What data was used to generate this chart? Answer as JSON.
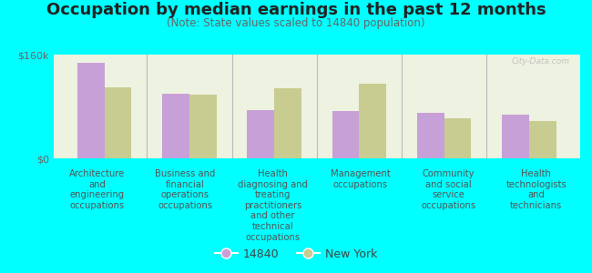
{
  "title": "Occupation by median earnings in the past 12 months",
  "subtitle": "(Note: State values scaled to 14840 population)",
  "categories": [
    "Architecture\nand\nengineering\noccupations",
    "Business and\nfinancial\noperations\noccupations",
    "Health\ndiagnosing and\ntreating\npractitioners\nand other\ntechnical\noccupations",
    "Management\noccupations",
    "Community\nand social\nservice\noccupations",
    "Health\ntechnologists\nand\ntechnicians"
  ],
  "values_14840": [
    148000,
    100000,
    75000,
    73000,
    70000,
    68000
  ],
  "values_ny": [
    110000,
    98000,
    108000,
    115000,
    62000,
    58000
  ],
  "color_14840": "#c8a0d8",
  "color_ny": "#c8cc90",
  "ylim": [
    0,
    160000
  ],
  "yticks": [
    0,
    160000
  ],
  "ytick_labels": [
    "$0",
    "$160k"
  ],
  "background_color": "#00ffff",
  "plot_bg_color": "#eef2e0",
  "legend_14840": "14840",
  "legend_ny": "New York",
  "watermark": "City-Data.com",
  "bar_width": 0.32,
  "title_fontsize": 13,
  "subtitle_fontsize": 8.5,
  "label_fontsize": 7.2,
  "sep_line_color": "#bbbbbb"
}
